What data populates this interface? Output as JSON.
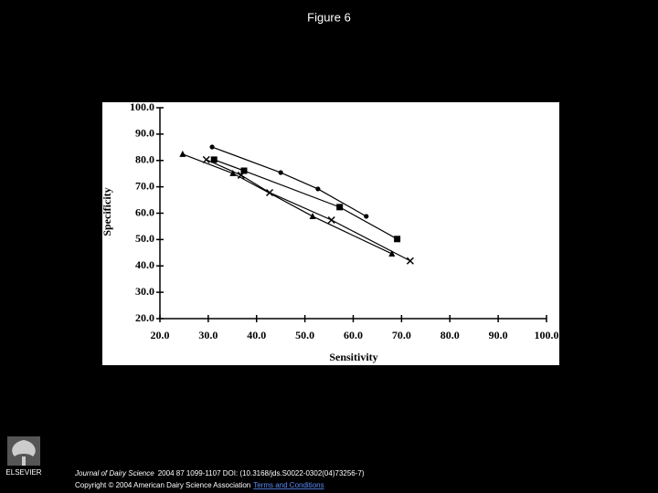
{
  "page": {
    "title": "Figure 6",
    "journal": "Journal of Dairy Science",
    "citation": "2004 87 1099-1107 DOI: (10.3168/jds.S0022-0302(04)73256-7)",
    "copyright": "Copyright © 2004 American Dairy Science Association",
    "terms": "Terms and Conditions",
    "publisher": "ELSEVIER"
  },
  "chart_data": {
    "type": "line",
    "x_label": "Sensitivity",
    "y_label": "Specificity",
    "xlim": [
      20,
      100
    ],
    "ylim": [
      20,
      100
    ],
    "xticks": [
      {
        "value": 20,
        "label": "20.0"
      },
      {
        "value": 30,
        "label": "30.0"
      },
      {
        "value": 40,
        "label": "40.0"
      },
      {
        "value": 50,
        "label": "50.0"
      },
      {
        "value": 60,
        "label": "60.0"
      },
      {
        "value": 70,
        "label": "70.0"
      },
      {
        "value": 80,
        "label": "80.0"
      },
      {
        "value": 90,
        "label": "90.0"
      },
      {
        "value": 100,
        "label": "100.0"
      }
    ],
    "yticks": [
      {
        "value": 20,
        "label": "20.0"
      },
      {
        "value": 30,
        "label": "30.0"
      },
      {
        "value": 40,
        "label": "40.0"
      },
      {
        "value": 50,
        "label": "50.0"
      },
      {
        "value": 60,
        "label": "60.0"
      },
      {
        "value": 70,
        "label": "70.0"
      },
      {
        "value": 80,
        "label": "80.0"
      },
      {
        "value": 90,
        "label": "90.0"
      },
      {
        "value": 100,
        "label": "100.0"
      }
    ],
    "series": [
      {
        "color": "#000000",
        "marker": "circle",
        "x": [
          30.8,
          45.0,
          52.7,
          62.7
        ],
        "y": [
          85.1,
          75.4,
          69.2,
          58.8
        ]
      },
      {
        "color": "#000000",
        "marker": "square",
        "x": [
          31.2,
          37.4,
          57.2,
          69.1
        ],
        "y": [
          80.3,
          76.1,
          62.3,
          50.2
        ]
      },
      {
        "color": "#000000",
        "marker": "triangle",
        "x": [
          24.7,
          35.1,
          51.6,
          68.0
        ],
        "y": [
          82.4,
          75.1,
          58.8,
          44.6
        ]
      },
      {
        "color": "#000000",
        "marker": "cross",
        "x": [
          29.6,
          36.8,
          42.7,
          55.5,
          71.8
        ],
        "y": [
          80.3,
          74.4,
          67.8,
          57.4,
          41.9
        ]
      }
    ]
  }
}
